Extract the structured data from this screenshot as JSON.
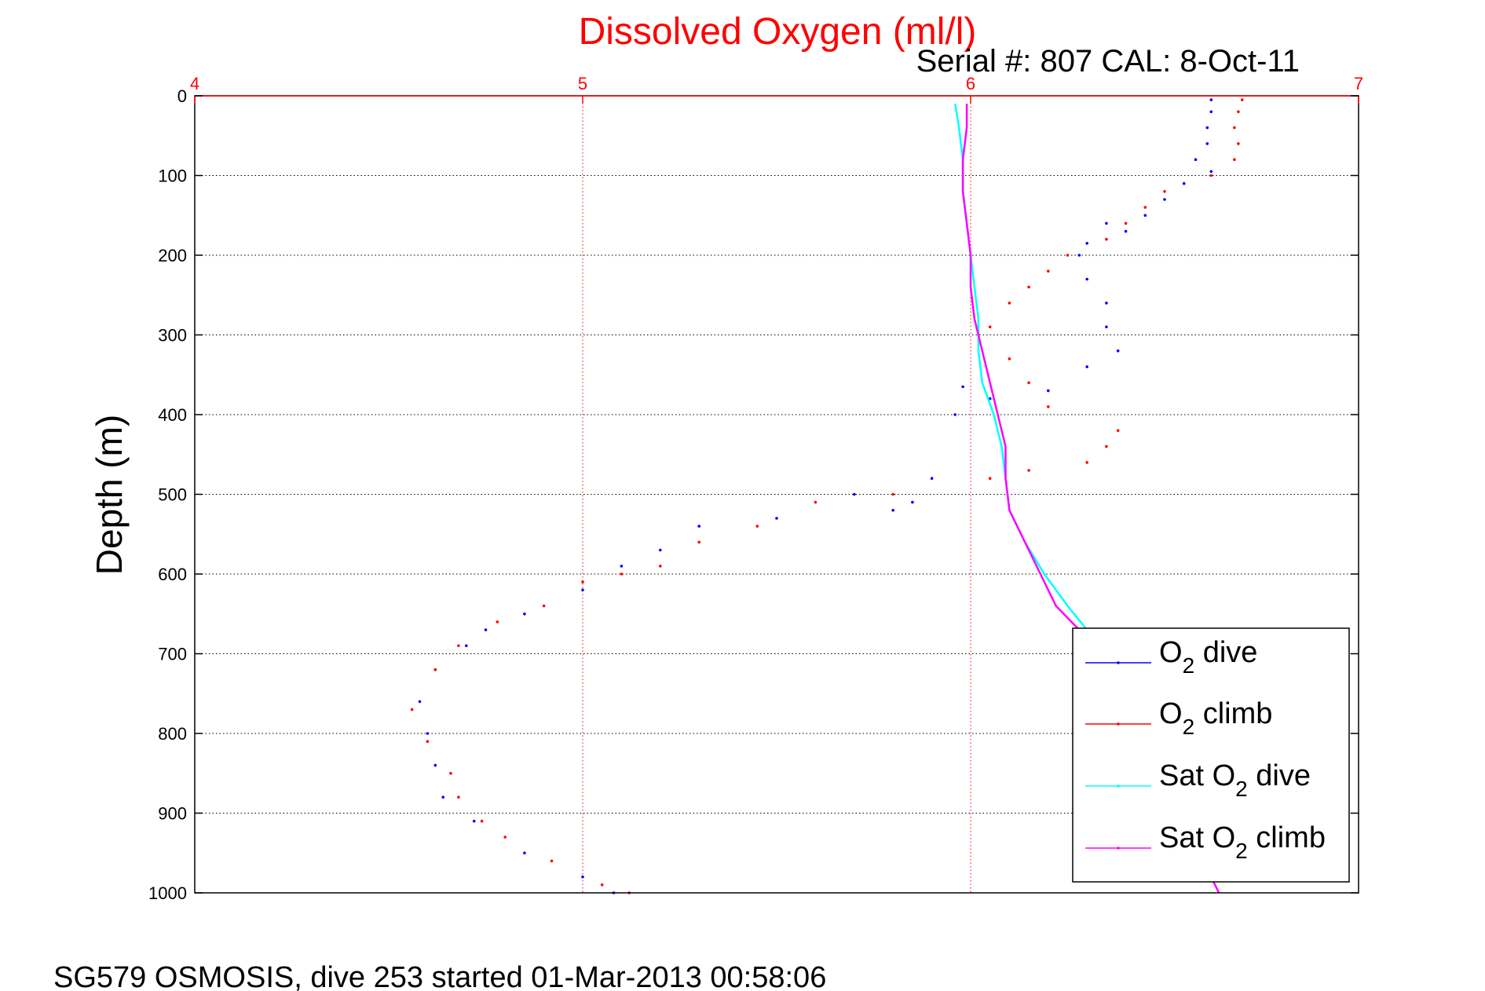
{
  "chart_data": {
    "type": "scatter",
    "title": "Dissolved Oxygen (ml/l)",
    "subtitle": "Serial #: 807  CAL: 8-Oct-11",
    "xlabel": "",
    "ylabel": "Depth (m)",
    "xlim": [
      4,
      7
    ],
    "ylim": [
      0,
      1000
    ],
    "y_reversed": true,
    "x_axis_position": "top",
    "x_ticks": [
      "4",
      "5",
      "6",
      "7"
    ],
    "y_ticks": [
      "0",
      "100",
      "200",
      "300",
      "400",
      "500",
      "600",
      "700",
      "800",
      "900",
      "1000"
    ],
    "grid": true,
    "legend_position": "bottom-right",
    "legend": [
      {
        "label": "O",
        "sub": "2",
        "suffix": " dive"
      },
      {
        "label": "O",
        "sub": "2",
        "suffix": " climb"
      },
      {
        "label": "Sat O",
        "sub": "2",
        "suffix": " dive"
      },
      {
        "label": "Sat O",
        "sub": "2",
        "suffix": " climb"
      }
    ],
    "series": [
      {
        "name": "O2 dive",
        "mode": "markers",
        "color": "#0000ff",
        "points": [
          [
            6.62,
            5
          ],
          [
            6.62,
            20
          ],
          [
            6.61,
            40
          ],
          [
            6.61,
            60
          ],
          [
            6.58,
            80
          ],
          [
            6.62,
            95
          ],
          [
            6.55,
            110
          ],
          [
            6.5,
            130
          ],
          [
            6.45,
            150
          ],
          [
            6.35,
            160
          ],
          [
            6.4,
            170
          ],
          [
            6.3,
            185
          ],
          [
            6.28,
            200
          ],
          [
            6.3,
            230
          ],
          [
            6.35,
            260
          ],
          [
            6.35,
            290
          ],
          [
            6.38,
            320
          ],
          [
            6.3,
            340
          ],
          [
            6.2,
            370
          ],
          [
            5.98,
            365
          ],
          [
            5.96,
            400
          ],
          [
            6.05,
            380
          ],
          [
            5.9,
            480
          ],
          [
            5.85,
            510
          ],
          [
            5.8,
            520
          ],
          [
            5.7,
            500
          ],
          [
            5.5,
            530
          ],
          [
            5.3,
            540
          ],
          [
            5.2,
            570
          ],
          [
            5.1,
            590
          ],
          [
            5.0,
            620
          ],
          [
            4.85,
            650
          ],
          [
            4.75,
            670
          ],
          [
            4.7,
            690
          ],
          [
            4.62,
            720
          ],
          [
            4.58,
            760
          ],
          [
            4.6,
            800
          ],
          [
            4.62,
            840
          ],
          [
            4.64,
            880
          ],
          [
            4.72,
            910
          ],
          [
            4.85,
            950
          ],
          [
            5.0,
            980
          ],
          [
            5.08,
            1000
          ]
        ]
      },
      {
        "name": "O2 climb",
        "mode": "markers",
        "color": "#ff0000",
        "points": [
          [
            6.7,
            5
          ],
          [
            6.69,
            20
          ],
          [
            6.68,
            40
          ],
          [
            6.69,
            60
          ],
          [
            6.68,
            80
          ],
          [
            6.62,
            100
          ],
          [
            6.5,
            120
          ],
          [
            6.45,
            140
          ],
          [
            6.4,
            160
          ],
          [
            6.35,
            180
          ],
          [
            6.25,
            200
          ],
          [
            6.2,
            220
          ],
          [
            6.15,
            240
          ],
          [
            6.1,
            260
          ],
          [
            6.05,
            290
          ],
          [
            6.1,
            330
          ],
          [
            6.15,
            360
          ],
          [
            6.2,
            390
          ],
          [
            6.38,
            420
          ],
          [
            6.35,
            440
          ],
          [
            6.3,
            460
          ],
          [
            6.15,
            470
          ],
          [
            6.05,
            480
          ],
          [
            5.8,
            500
          ],
          [
            5.6,
            510
          ],
          [
            5.45,
            540
          ],
          [
            5.3,
            560
          ],
          [
            5.2,
            590
          ],
          [
            5.1,
            600
          ],
          [
            5.0,
            610
          ],
          [
            4.9,
            640
          ],
          [
            4.78,
            660
          ],
          [
            4.68,
            690
          ],
          [
            4.62,
            720
          ],
          [
            4.56,
            770
          ],
          [
            4.6,
            810
          ],
          [
            4.66,
            850
          ],
          [
            4.68,
            880
          ],
          [
            4.74,
            910
          ],
          [
            4.8,
            930
          ],
          [
            4.92,
            960
          ],
          [
            5.05,
            990
          ],
          [
            5.12,
            1000
          ]
        ]
      },
      {
        "name": "Sat O2 dive",
        "mode": "line",
        "color": "#00ffff",
        "points": [
          [
            5.96,
            10
          ],
          [
            5.97,
            40
          ],
          [
            5.98,
            80
          ],
          [
            5.98,
            120
          ],
          [
            5.99,
            160
          ],
          [
            6.0,
            200
          ],
          [
            6.01,
            240
          ],
          [
            6.02,
            280
          ],
          [
            6.02,
            320
          ],
          [
            6.03,
            360
          ],
          [
            6.06,
            400
          ],
          [
            6.08,
            440
          ],
          [
            6.09,
            480
          ],
          [
            6.1,
            520
          ],
          [
            6.14,
            560
          ],
          [
            6.19,
            600
          ],
          [
            6.25,
            640
          ],
          [
            6.3,
            670
          ]
        ]
      },
      {
        "name": "Sat O2 climb",
        "mode": "line",
        "color": "#ff00ff",
        "points": [
          [
            5.99,
            10
          ],
          [
            5.99,
            40
          ],
          [
            5.98,
            80
          ],
          [
            5.98,
            120
          ],
          [
            5.99,
            160
          ],
          [
            6.0,
            200
          ],
          [
            6.0,
            240
          ],
          [
            6.01,
            280
          ],
          [
            6.03,
            320
          ],
          [
            6.05,
            360
          ],
          [
            6.07,
            400
          ],
          [
            6.09,
            440
          ],
          [
            6.09,
            480
          ],
          [
            6.1,
            520
          ],
          [
            6.14,
            560
          ],
          [
            6.18,
            600
          ],
          [
            6.22,
            640
          ],
          [
            6.28,
            670
          ],
          [
            6.63,
            990
          ],
          [
            6.64,
            1000
          ]
        ]
      }
    ]
  },
  "footer": "SG579 OSMOSIS, dive 253 started 01-Mar-2013 00:58:06"
}
